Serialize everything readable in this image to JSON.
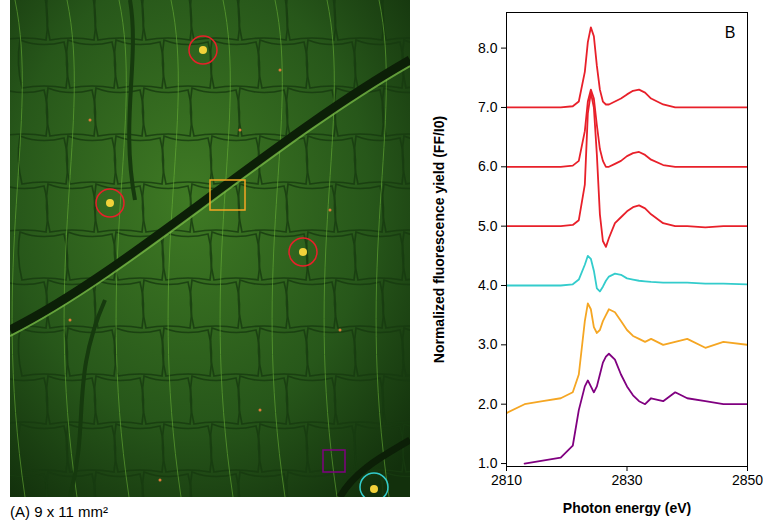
{
  "image_panel": {
    "caption": "(A) 9 x 11 mm²"
  },
  "chart_data": {
    "type": "line",
    "panel_letter": "B",
    "x_label": "Photon energy (eV)",
    "y_label": "Normalized fluorescence yield (FF/I0)",
    "xlim": [
      2810,
      2850
    ],
    "xticks": [
      2810,
      2830,
      2850
    ],
    "ylim": [
      0.95,
      8.6
    ],
    "yticks": [
      {
        "value": 1,
        "label": "1.0"
      },
      {
        "value": 2,
        "label": "2.0"
      },
      {
        "value": 3,
        "label": "3.0"
      },
      {
        "value": 4,
        "label": "4.0"
      },
      {
        "value": 5,
        "label": "5.0"
      },
      {
        "value": 6,
        "label": "6.0"
      },
      {
        "value": 7,
        "label": "7.0"
      },
      {
        "value": 8,
        "label": "8.0"
      }
    ],
    "grid": false,
    "x": [
      2810,
      2813,
      2816,
      2819,
      2821,
      2822,
      2823,
      2823.5,
      2824,
      2824.5,
      2825,
      2825.5,
      2826,
      2826.5,
      2827,
      2828,
      2829,
      2830,
      2831,
      2832,
      2833,
      2834,
      2836,
      2838,
      2840,
      2843,
      2846,
      2850
    ],
    "series": [
      {
        "color": "#e8202a",
        "values": [
          7.0,
          7.0,
          7.0,
          7.0,
          7.02,
          7.1,
          7.6,
          8.1,
          8.35,
          8.2,
          7.7,
          7.3,
          7.1,
          7.05,
          7.05,
          7.1,
          7.15,
          7.22,
          7.28,
          7.3,
          7.25,
          7.15,
          7.05,
          7.0,
          7.0,
          7.0,
          7.0,
          7.0
        ]
      },
      {
        "color": "#e8202a",
        "values": [
          6.0,
          6.0,
          6.0,
          6.0,
          6.02,
          6.1,
          6.6,
          7.1,
          7.3,
          7.15,
          6.7,
          6.3,
          6.1,
          6.0,
          6.0,
          6.05,
          6.1,
          6.18,
          6.23,
          6.25,
          6.2,
          6.12,
          6.03,
          6.0,
          6.0,
          6.0,
          6.0,
          6.0
        ]
      },
      {
        "color": "#e8202a",
        "values": [
          5.0,
          5.0,
          5.0,
          5.0,
          5.02,
          5.1,
          5.7,
          6.9,
          7.25,
          7.0,
          6.2,
          5.2,
          4.75,
          4.65,
          4.8,
          5.05,
          5.15,
          5.25,
          5.32,
          5.35,
          5.3,
          5.2,
          5.05,
          5.0,
          5.0,
          4.98,
          5.0,
          5.0
        ]
      },
      {
        "color": "#33cccc",
        "values": [
          4.0,
          4.0,
          4.0,
          4.0,
          4.02,
          4.1,
          4.35,
          4.5,
          4.45,
          4.25,
          3.95,
          3.9,
          3.98,
          4.08,
          4.15,
          4.2,
          4.18,
          4.12,
          4.1,
          4.08,
          4.07,
          4.06,
          4.05,
          4.05,
          4.05,
          4.03,
          4.03,
          4.02
        ]
      },
      {
        "color": "#f5a623",
        "values": [
          1.85,
          2.0,
          2.05,
          2.1,
          2.2,
          2.5,
          3.4,
          3.7,
          3.6,
          3.3,
          3.2,
          3.25,
          3.4,
          3.5,
          3.6,
          3.55,
          3.4,
          3.25,
          3.15,
          3.1,
          3.05,
          3.1,
          3.0,
          3.05,
          3.1,
          2.95,
          3.05,
          3.0
        ]
      },
      {
        "color": "#800080",
        "values": [
          null,
          1.0,
          1.05,
          1.1,
          1.3,
          1.9,
          2.3,
          2.4,
          2.3,
          2.2,
          2.3,
          2.5,
          2.7,
          2.8,
          2.85,
          2.75,
          2.5,
          2.3,
          2.15,
          2.05,
          2.0,
          2.1,
          2.05,
          2.2,
          2.1,
          2.05,
          2.0,
          2.0
        ]
      }
    ]
  }
}
